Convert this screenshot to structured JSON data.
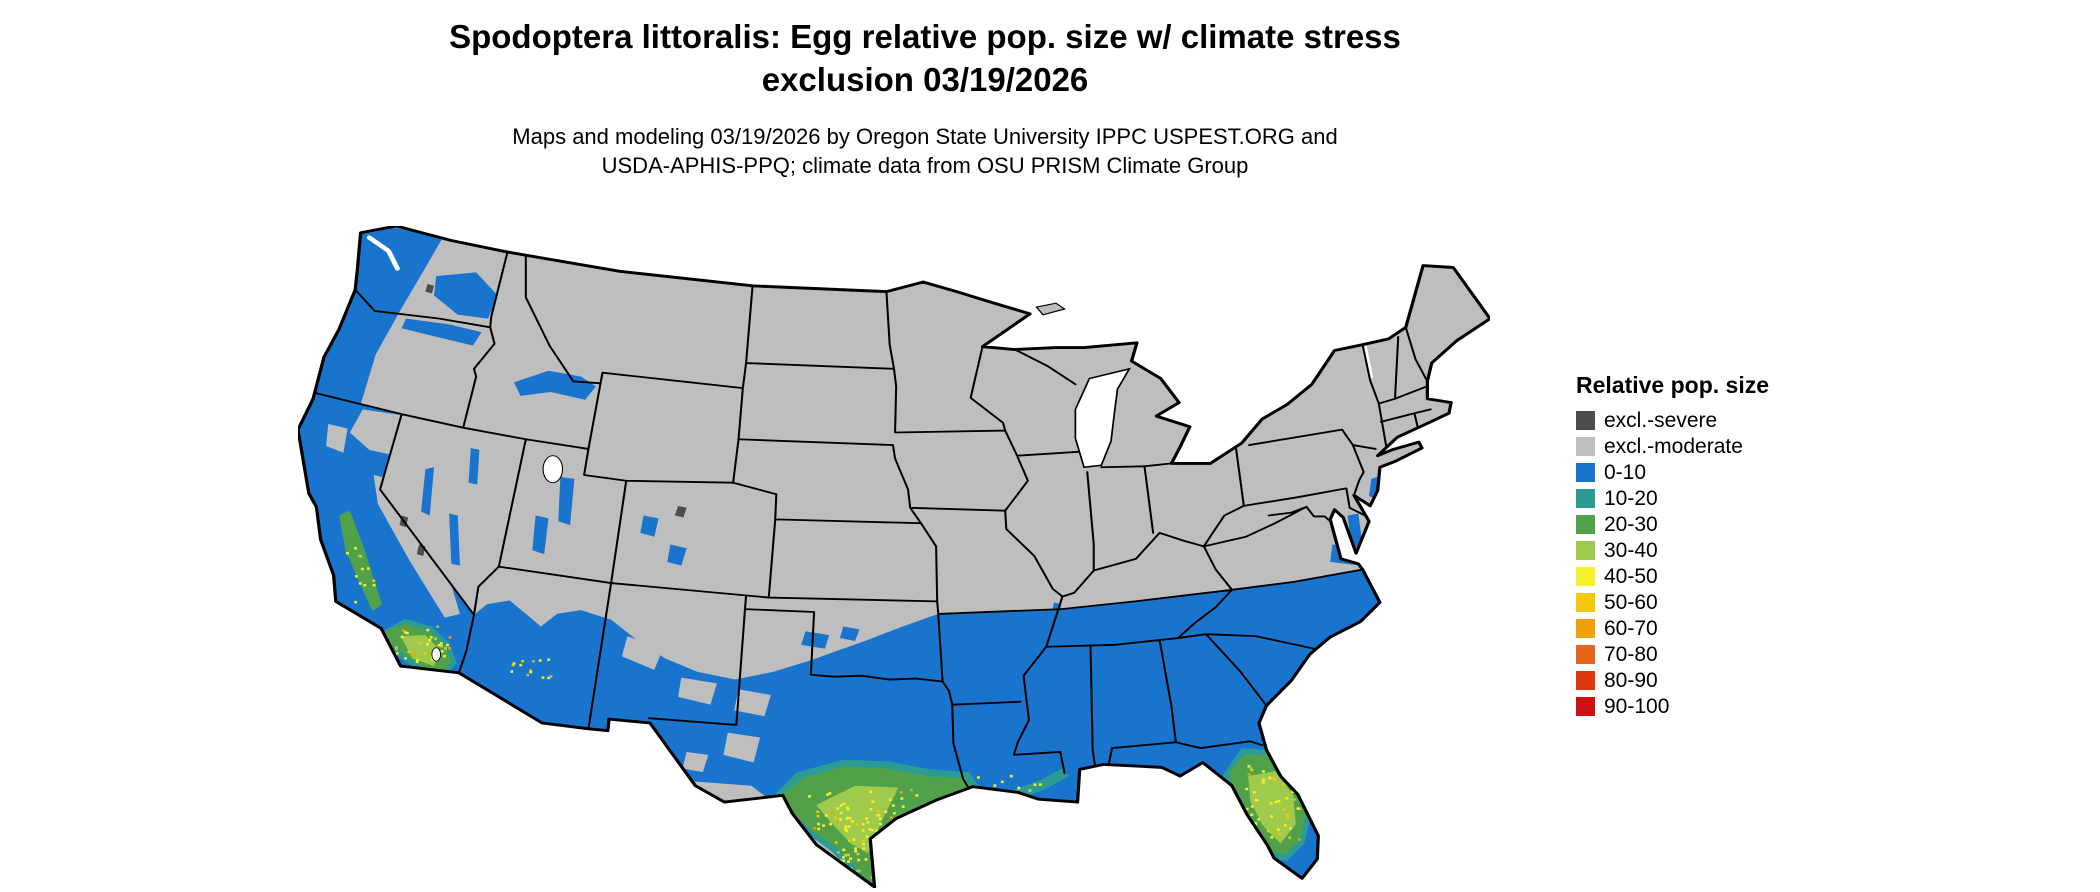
{
  "title": {
    "line1": "Spodoptera littoralis: Egg relative pop. size w/ climate stress",
    "line2": "exclusion 03/19/2026"
  },
  "subtitle": {
    "line1": "Maps and modeling 03/19/2026 by Oregon State University IPPC USPEST.ORG and",
    "line2": "USDA-APHIS-PPQ; climate data from OSU PRISM Climate Group"
  },
  "legend": {
    "title": "Relative pop. size",
    "items": [
      {
        "label": "excl.-severe",
        "color": "#4d4d4d"
      },
      {
        "label": "excl.-moderate",
        "color": "#bebebe"
      },
      {
        "label": "0-10",
        "color": "#1874cd"
      },
      {
        "label": "10-20",
        "color": "#2c9b93"
      },
      {
        "label": "20-30",
        "color": "#51a14b"
      },
      {
        "label": "30-40",
        "color": "#a0ca4c"
      },
      {
        "label": "40-50",
        "color": "#f5f12c"
      },
      {
        "label": "50-60",
        "color": "#f2c80c"
      },
      {
        "label": "60-70",
        "color": "#efa00b"
      },
      {
        "label": "70-80",
        "color": "#e4661c"
      },
      {
        "label": "80-90",
        "color": "#dc3913"
      },
      {
        "label": "90-100",
        "color": "#cc1014"
      }
    ]
  },
  "map": {
    "palette": {
      "excl_severe": "#4d4d4d",
      "excl_moderate": "#bebebe",
      "v0_10": "#1874cd",
      "v10_20": "#2c9b93",
      "v20_30": "#51a14b",
      "v30_40": "#a0ca4c",
      "v40_50": "#f5f12c",
      "v50_60": "#f2c80c",
      "v60_70": "#efa00b",
      "v70_80": "#e4661c",
      "v80_90": "#dc3913",
      "v90_100": "#cc1014"
    }
  }
}
